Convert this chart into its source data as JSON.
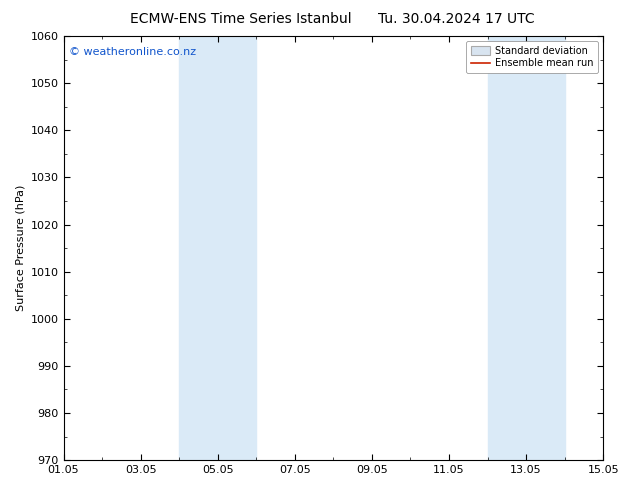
{
  "title_left": "ECMW-ENS Time Series Istanbul",
  "title_right": "Tu. 30.04.2024 17 UTC",
  "ylabel": "Surface Pressure (hPa)",
  "ylim": [
    970,
    1060
  ],
  "yticks": [
    970,
    980,
    990,
    1000,
    1010,
    1020,
    1030,
    1040,
    1050,
    1060
  ],
  "xtick_labels": [
    "01.05",
    "03.05",
    "05.05",
    "07.05",
    "09.05",
    "11.05",
    "13.05",
    "15.05"
  ],
  "xtick_positions": [
    0,
    2,
    4,
    6,
    8,
    10,
    12,
    14
  ],
  "xlim": [
    0,
    14
  ],
  "shade_bands": [
    {
      "x_start": 3.0,
      "x_end": 5.0
    },
    {
      "x_start": 11.0,
      "x_end": 13.0
    }
  ],
  "shade_color": "#daeaf7",
  "watermark_text": "© weatheronline.co.nz",
  "watermark_color": "#1155cc",
  "watermark_fontsize": 8,
  "legend_std_label": "Standard deviation",
  "legend_mean_label": "Ensemble mean run",
  "legend_std_face": "#d8e4f0",
  "legend_std_edge": "#aaaaaa",
  "legend_mean_color": "#cc2200",
  "title_fontsize": 10,
  "tick_fontsize": 8,
  "ylabel_fontsize": 8,
  "bg_color": "#ffffff",
  "axes_bg_color": "#ffffff",
  "spine_color": "#000000"
}
